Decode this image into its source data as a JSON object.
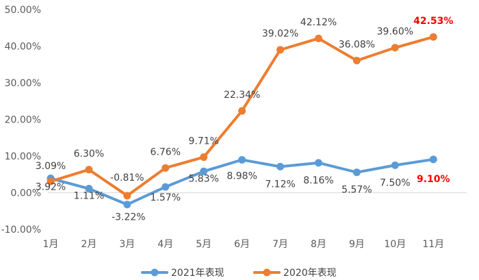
{
  "chart_data": {
    "type": "line",
    "categories": [
      "1月",
      "2月",
      "3月",
      "4月",
      "5月",
      "6月",
      "7月",
      "8月",
      "9月",
      "10月",
      "11月"
    ],
    "ylim": [
      -10,
      50
    ],
    "yticks": [
      "-10.00%",
      "0.00%",
      "10.00%",
      "20.00%",
      "30.00%",
      "40.00%",
      "50.00%"
    ],
    "grid": false,
    "legend_position": "bottom",
    "series": [
      {
        "name": "2021年表现",
        "color": "#5b9bd5",
        "values": [
          3.92,
          1.11,
          -3.22,
          1.57,
          5.83,
          8.98,
          7.12,
          8.16,
          5.57,
          7.5,
          9.1
        ],
        "labels": [
          "3.92%",
          "1.11%",
          "-3.22%",
          "1.57%",
          "5.83%",
          "8.98%",
          "7.12%",
          "8.16%",
          "5.57%",
          "7.50%",
          "9.10%"
        ],
        "highlight_last": true
      },
      {
        "name": "2020年表现",
        "color": "#ed7d31",
        "values": [
          3.09,
          6.3,
          -0.81,
          6.76,
          9.71,
          22.34,
          39.02,
          42.12,
          36.08,
          39.6,
          42.53
        ],
        "labels": [
          "3.09%",
          "6.30%",
          "-0.81%",
          "6.76%",
          "9.71%",
          "22.34%",
          "39.02%",
          "42.12%",
          "36.08%",
          "39.60%",
          "42.53%"
        ],
        "highlight_last": true
      }
    ],
    "highlight_color": "#ff0000"
  }
}
